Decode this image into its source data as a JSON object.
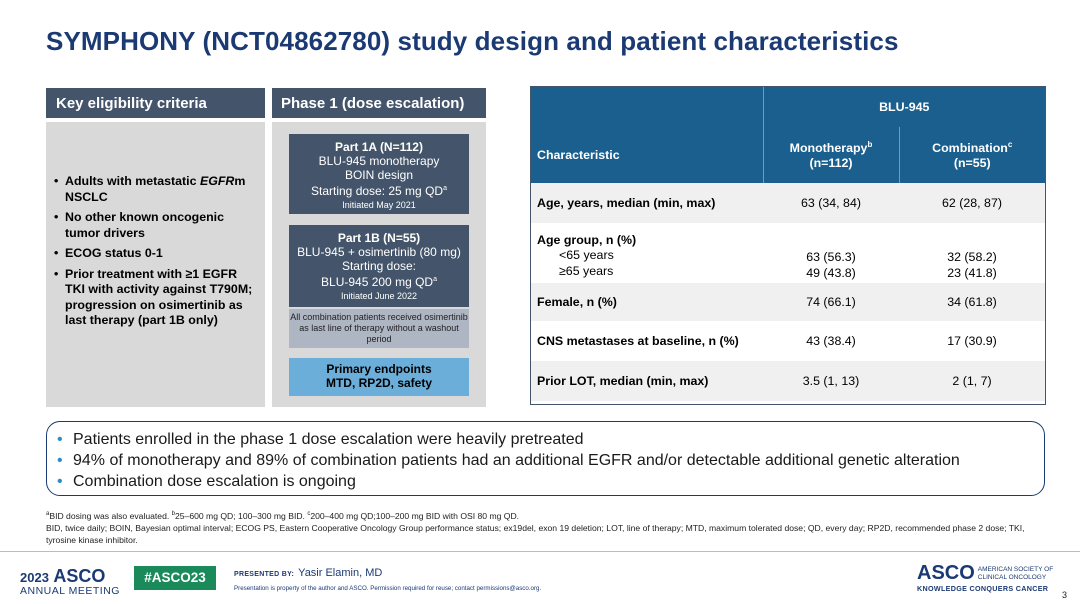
{
  "title": "SYMPHONY (NCT04862780) study design and patient characteristics",
  "eligibility": {
    "header": "Key eligibility criteria",
    "items": [
      {
        "pre": "Adults with metastatic ",
        "italic": "EGFR",
        "post": "m NSCLC"
      },
      {
        "pre": "No other known oncogenic tumor drivers",
        "italic": "",
        "post": ""
      },
      {
        "pre": "ECOG status 0-1",
        "italic": "",
        "post": ""
      },
      {
        "pre": "Prior treatment with ≥1 EGFR TKI with activity against T790M; progression on osimertinib as last therapy (part 1B only)",
        "italic": "",
        "post": ""
      }
    ]
  },
  "phase1": {
    "header": "Phase 1 (dose escalation)",
    "part_a": {
      "title": "Part 1A (N=112)",
      "line1": "BLU-945 monotherapy",
      "line2": "BOIN design",
      "line3": "Starting dose: 25 mg QD",
      "line3_sup": "a",
      "initiated": "Initiated May 2021"
    },
    "part_b": {
      "title": "Part 1B (N=55)",
      "line1": "BLU-945 + osimertinib (80 mg)",
      "line2": "Starting dose:",
      "line3": "BLU-945 200 mg QD",
      "line3_sup": "a",
      "initiated": "Initiated June 2022"
    },
    "note": "All combination patients received osimertinib as last line of therapy without a washout period",
    "endpoint_title": "Primary endpoints",
    "endpoint_list": "MTD, RP2D, safety"
  },
  "table": {
    "drug_header": "BLU-945",
    "char_header": "Characteristic",
    "mono_header": "Monotherapy",
    "mono_sup": "b",
    "mono_n": "(n=112)",
    "combo_header": "Combination",
    "combo_sup": "c",
    "combo_n": "(n=55)",
    "rows": [
      {
        "label": "Age, years, median (min, max)",
        "mono": "63 (34, 84)",
        "combo": "62 (28, 87)"
      },
      {
        "label": "Age group, n (%)",
        "sub1": "<65 years",
        "sub2": "≥65 years",
        "mono1": "63 (56.3)",
        "mono2": "49 (43.8)",
        "combo1": "32 (58.2)",
        "combo2": "23 (41.8)"
      },
      {
        "label": "Female, n (%)",
        "mono": "74 (66.1)",
        "combo": "34 (61.8)"
      },
      {
        "label": "CNS metastases at baseline, n (%)",
        "mono": "43 (38.4)",
        "combo": "17 (30.9)"
      },
      {
        "label": "Prior LOT, median (min, max)",
        "mono": "3.5 (1, 13)",
        "combo": "2 (1, 7)"
      }
    ]
  },
  "summary": [
    "Patients enrolled in the phase 1 dose escalation were heavily pretreated",
    "94% of monotherapy and 89% of combination patients had an additional EGFR and/or detectable additional genetic alteration",
    "Combination dose escalation is ongoing"
  ],
  "footnotes": {
    "fn_a_sup": "a",
    "fn_a": "BID dosing was also evaluated. ",
    "fn_b_sup": "b",
    "fn_b": "25–600 mg QD; 100–300 mg BID. ",
    "fn_c_sup": "c",
    "fn_c": "200–400 mg QD;100–200 mg BID with OSI 80 mg QD.",
    "abbrev": "BID, twice daily; BOIN, Bayesian optimal interval; ECOG PS, Eastern Cooperative Oncology Group performance status; ex19del, exon 19 deletion; LOT, line of therapy; MTD, maximum tolerated dose; QD, every day; RP2D, recommended phase 2 dose; TKI, tyrosine kinase inhibitor."
  },
  "footer": {
    "year": "2023",
    "asco": "ASCO",
    "annual_meeting": "ANNUAL MEETING",
    "hashtag": "#ASCO23",
    "presented_by": "PRESENTED BY:",
    "presenter": "Yasir Elamin, MD",
    "permission": "Presentation is property of the author and ASCO. Permission required for reuse; contact permissions@asco.org.",
    "society_line1": "AMERICAN SOCIETY OF",
    "society_line2": "CLINICAL ONCOLOGY",
    "tagline": "KNOWLEDGE CONQUERS CANCER",
    "page": "3"
  }
}
